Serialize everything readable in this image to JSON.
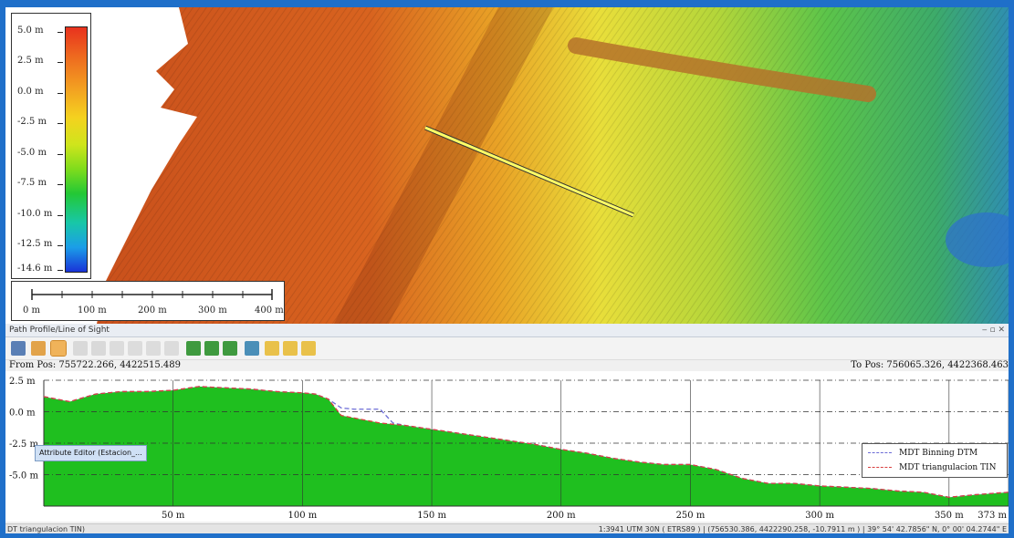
{
  "map": {
    "legend": {
      "labels": [
        "5.0 m",
        "2.5 m",
        "0.0 m",
        "-2.5 m",
        "-5.0 m",
        "-7.5 m",
        "-10.0 m",
        "-12.5 m",
        "-14.6 m"
      ]
    },
    "scalebar": {
      "labels": [
        "0 m",
        "100 m",
        "200 m",
        "300 m",
        "400 m"
      ]
    }
  },
  "panel": {
    "title": "Path Profile/Line of Sight",
    "controls": "‒ ▫ ✕",
    "toolbar_icons": [
      "pointer-icon",
      "pan-icon",
      "profile-icon",
      "grid-icon",
      "grid-2-icon",
      "ruler-icon",
      "ruler-2-icon",
      "select-icon",
      "line-icon",
      "chart-icon",
      "chart-2-icon",
      "chart-3-icon",
      "viewshed-icon",
      "flag-icon",
      "flag-2-icon",
      "flag-3-icon"
    ],
    "from_pos": "From Pos: 755722.266, 4422515.489",
    "to_pos": "To Pos: 756065.326, 4422368.463",
    "tooltip": "Attribute Editor (Estacion_..."
  },
  "chart_data": {
    "type": "area",
    "xlabel": "",
    "ylabel": "",
    "xlim": [
      0,
      373
    ],
    "ylim": [
      -7.5,
      2.5
    ],
    "y_ticks": [
      "2.5 m",
      "0.0 m",
      "-2.5 m",
      "-5.0 m"
    ],
    "y_tick_values": [
      2.5,
      0.0,
      -2.5,
      -5.0
    ],
    "x_ticks": [
      "50 m",
      "100 m",
      "150 m",
      "200 m",
      "250 m",
      "300 m",
      "350 m",
      "373 m"
    ],
    "x_tick_values": [
      50,
      100,
      150,
      200,
      250,
      300,
      350,
      373
    ],
    "grid": true,
    "legend_position": "bottom-right",
    "series": [
      {
        "name": "MDT Binning DTM",
        "color": "#6b6bd6",
        "x": [
          0,
          5,
          10,
          20,
          30,
          40,
          50,
          60,
          70,
          80,
          90,
          100,
          105,
          110,
          115,
          120,
          125,
          130,
          135,
          140,
          150,
          160,
          170,
          180,
          190,
          200,
          210,
          220,
          230,
          240,
          250,
          260,
          270,
          280,
          290,
          300,
          310,
          320,
          330,
          340,
          350,
          360,
          373
        ],
        "y": [
          1.2,
          1.0,
          0.8,
          1.4,
          1.6,
          1.6,
          1.7,
          2.0,
          1.9,
          1.8,
          1.6,
          1.5,
          1.4,
          1.0,
          0.3,
          0.2,
          0.2,
          0.2,
          -0.9,
          -1.1,
          -1.4,
          -1.7,
          -2.0,
          -2.3,
          -2.6,
          -3.0,
          -3.3,
          -3.7,
          -4.0,
          -4.2,
          -4.2,
          -4.6,
          -5.3,
          -5.7,
          -5.7,
          -5.9,
          -6.0,
          -6.1,
          -6.3,
          -6.4,
          -6.8,
          -6.6,
          -6.4
        ]
      },
      {
        "name": "MDT triangulacion TIN",
        "color": "#d84040",
        "x": [
          0,
          5,
          10,
          20,
          30,
          40,
          50,
          60,
          70,
          80,
          90,
          100,
          105,
          110,
          115,
          120,
          125,
          130,
          135,
          140,
          150,
          160,
          170,
          180,
          190,
          200,
          210,
          220,
          230,
          240,
          250,
          260,
          270,
          280,
          290,
          300,
          310,
          320,
          330,
          340,
          350,
          360,
          373
        ],
        "y": [
          1.2,
          1.0,
          0.8,
          1.4,
          1.6,
          1.6,
          1.7,
          2.0,
          1.9,
          1.8,
          1.6,
          1.5,
          1.4,
          1.0,
          -0.3,
          -0.5,
          -0.7,
          -0.9,
          -1.0,
          -1.1,
          -1.4,
          -1.7,
          -2.0,
          -2.3,
          -2.6,
          -3.0,
          -3.3,
          -3.7,
          -4.0,
          -4.2,
          -4.2,
          -4.6,
          -5.3,
          -5.7,
          -5.7,
          -5.9,
          -6.0,
          -6.1,
          -6.3,
          -6.4,
          -6.8,
          -6.6,
          -6.4
        ]
      }
    ],
    "fill_color": "#1fbf1f"
  },
  "status": {
    "left": "DT triangulacion TIN)",
    "right": "1:3941  UTM 30N ( ETRS89 ) | (756530.386, 4422290.258, -10.7911 m ) | 39° 54' 42.7856\" N, 0° 00' 04.2744\" E"
  }
}
